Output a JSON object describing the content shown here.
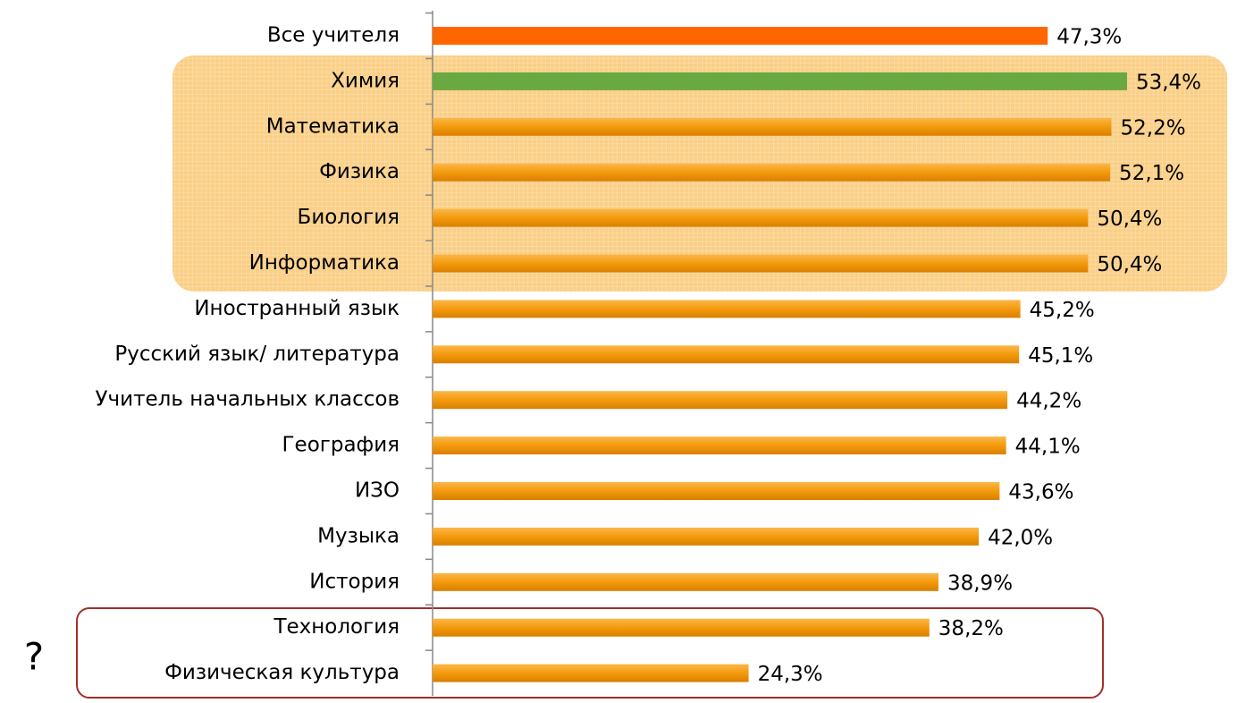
{
  "chart_data": {
    "type": "bar",
    "orientation": "horizontal",
    "categories": [
      "Все учителя",
      "Химия",
      "Математика",
      "Физика",
      "Биология",
      "Информатика",
      "Иностранный язык",
      "Русский язык/ литература",
      "Учитель начальных классов",
      "География",
      "ИЗО",
      "Музыка",
      "История",
      "Технология",
      "Физическая культура"
    ],
    "values": [
      47.3,
      53.4,
      52.2,
      52.1,
      50.4,
      50.4,
      45.2,
      45.1,
      44.2,
      44.1,
      43.6,
      42.0,
      38.9,
      38.2,
      24.3
    ],
    "value_labels": [
      "47,3%",
      "53,4%",
      "52,2%",
      "52,1%",
      "50,4%",
      "50,4%",
      "45,2%",
      "45,1%",
      "44,2%",
      "44,1%",
      "43,6%",
      "42,0%",
      "38,9%",
      "38,2%",
      "24,3%"
    ],
    "colors": [
      "#ff6600",
      "#6aa842",
      "#f49b0f",
      "#f49b0f",
      "#f49b0f",
      "#f49b0f",
      "#f49b0f",
      "#f49b0f",
      "#f49b0f",
      "#f49b0f",
      "#f49b0f",
      "#f49b0f",
      "#f49b0f",
      "#f49b0f",
      "#f49b0f"
    ],
    "annotation": "?"
  }
}
